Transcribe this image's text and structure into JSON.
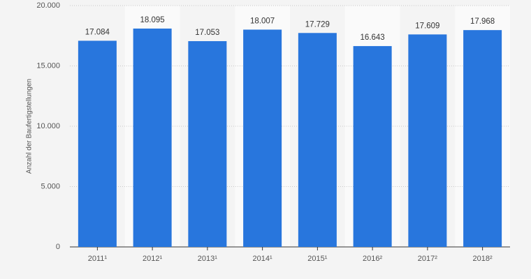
{
  "chart_data": {
    "type": "bar",
    "y_axis_label": "Anzahl der Baufertigstellungen",
    "categories": [
      "2011¹",
      "2012¹",
      "2013¹",
      "2014¹",
      "2015¹",
      "2016²",
      "2017²",
      "2018²"
    ],
    "values": [
      17084,
      18095,
      17053,
      18007,
      17729,
      16643,
      17609,
      17968
    ],
    "value_labels": [
      "17.084",
      "18.095",
      "17.053",
      "18.007",
      "17.729",
      "16.643",
      "17.609",
      "17.968"
    ],
    "color": "#2876dd",
    "ylim": [
      0,
      20000
    ],
    "yticks": [
      0,
      {
        "value": 5000,
        "label": "5.000"
      },
      {
        "value": 10000,
        "label": "10.000"
      },
      {
        "value": 15000,
        "label": "15.000"
      },
      {
        "value": 20000,
        "label": "20.000"
      }
    ],
    "grid": true
  }
}
